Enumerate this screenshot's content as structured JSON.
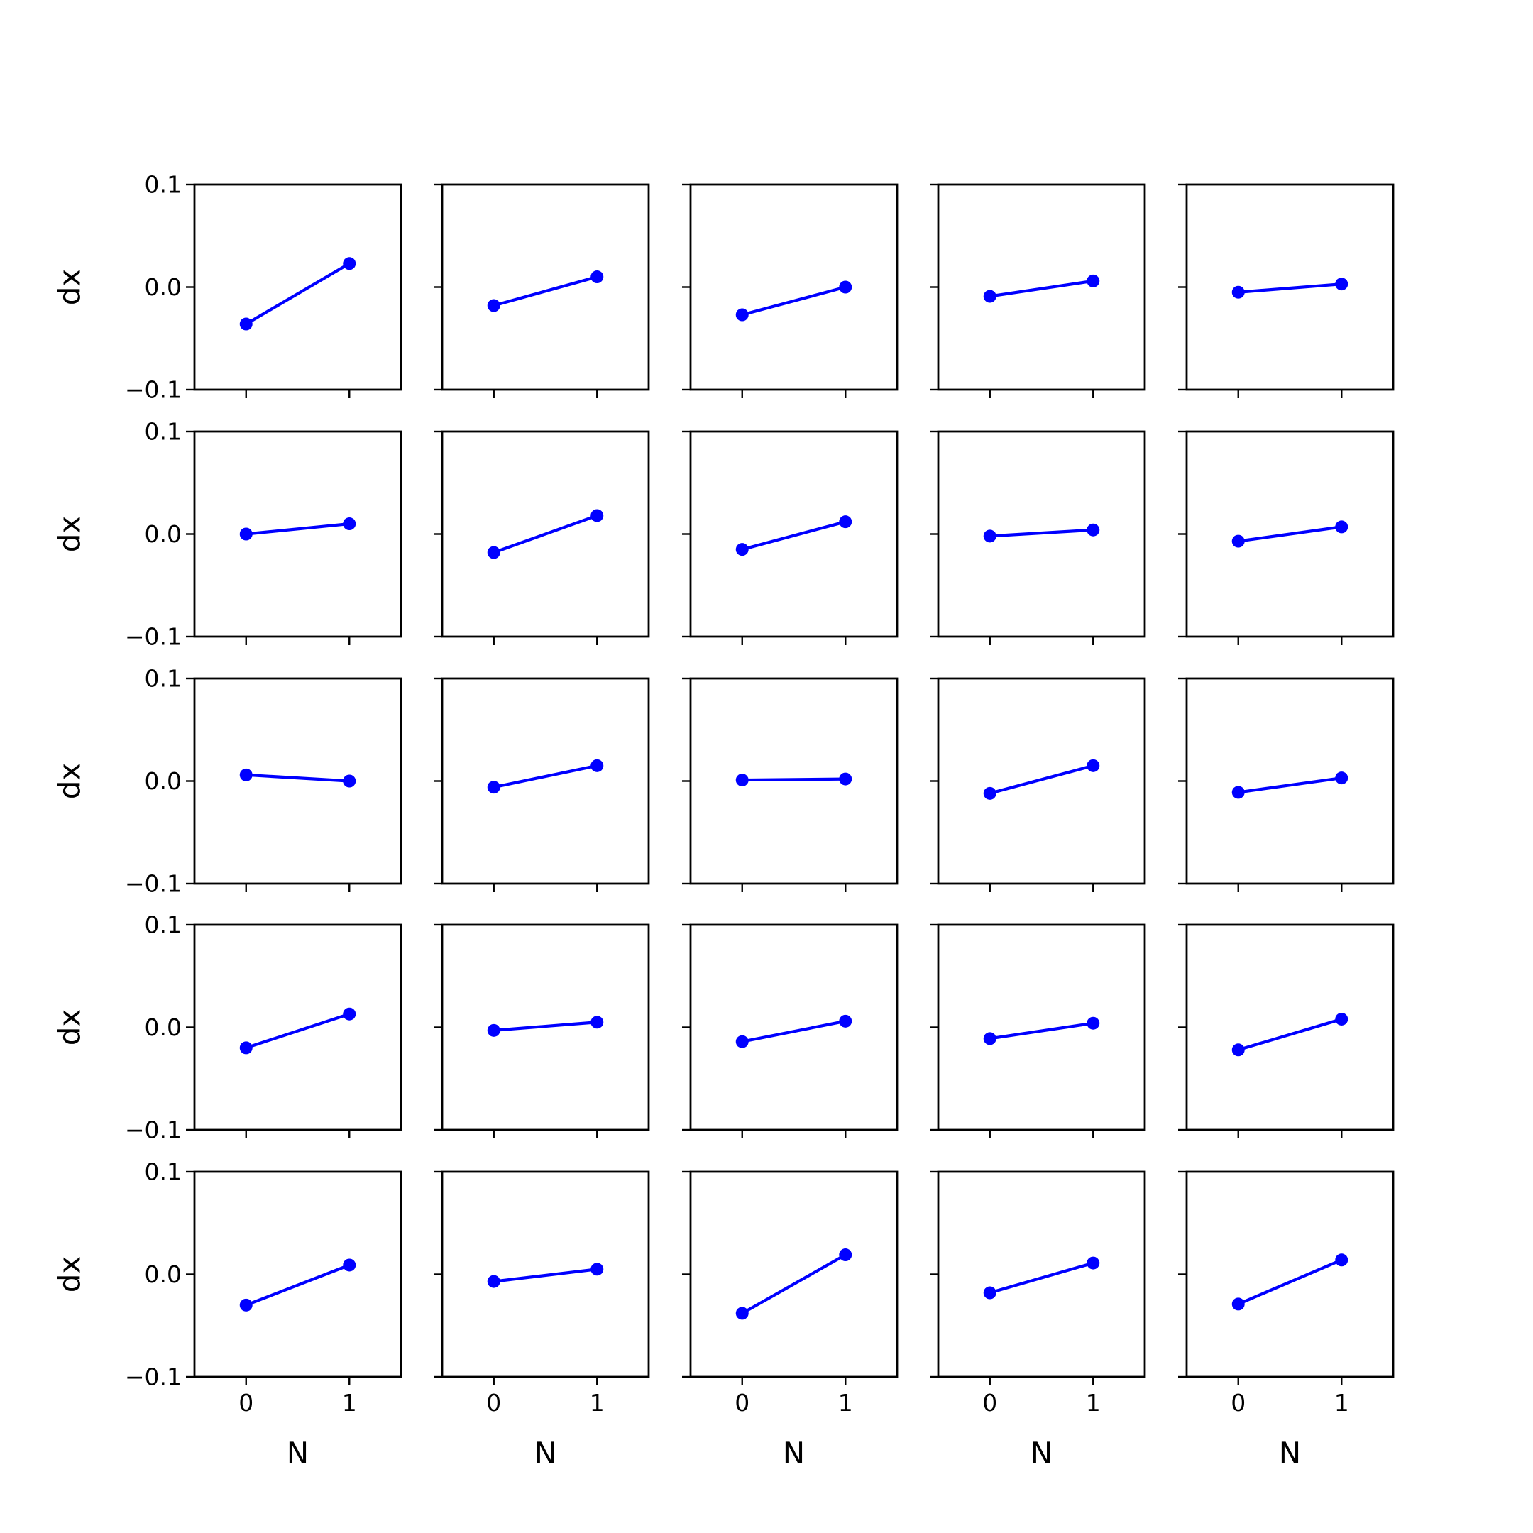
{
  "chart_data": {
    "type": "line",
    "layout": "5x5 grid of subplots",
    "grid": false,
    "color": "#0000ff",
    "marker": "circle",
    "xlabel": "N",
    "ylabel": "dx",
    "x": [
      0,
      1
    ],
    "xticks": [
      "0",
      "1"
    ],
    "xlim": [
      -0.5,
      1.5
    ],
    "yticks": [
      "0.1",
      "0.0",
      "−0.1"
    ],
    "ytick_values": [
      0.1,
      0.0,
      -0.1
    ],
    "ylim": [
      -0.1,
      0.1
    ],
    "panels": [
      {
        "row": 1,
        "col": 1,
        "y": [
          -0.036,
          0.023
        ]
      },
      {
        "row": 1,
        "col": 2,
        "y": [
          -0.018,
          0.01
        ]
      },
      {
        "row": 1,
        "col": 3,
        "y": [
          -0.027,
          0.0
        ]
      },
      {
        "row": 1,
        "col": 4,
        "y": [
          -0.009,
          0.006
        ]
      },
      {
        "row": 1,
        "col": 5,
        "y": [
          -0.005,
          0.003
        ]
      },
      {
        "row": 2,
        "col": 1,
        "y": [
          0.0,
          0.01
        ]
      },
      {
        "row": 2,
        "col": 2,
        "y": [
          -0.018,
          0.018
        ]
      },
      {
        "row": 2,
        "col": 3,
        "y": [
          -0.015,
          0.012
        ]
      },
      {
        "row": 2,
        "col": 4,
        "y": [
          -0.002,
          0.004
        ]
      },
      {
        "row": 2,
        "col": 5,
        "y": [
          -0.007,
          0.007
        ]
      },
      {
        "row": 3,
        "col": 1,
        "y": [
          0.006,
          0.0
        ]
      },
      {
        "row": 3,
        "col": 2,
        "y": [
          -0.006,
          0.015
        ]
      },
      {
        "row": 3,
        "col": 3,
        "y": [
          0.001,
          0.002
        ]
      },
      {
        "row": 3,
        "col": 4,
        "y": [
          -0.012,
          0.015
        ]
      },
      {
        "row": 3,
        "col": 5,
        "y": [
          -0.011,
          0.003
        ]
      },
      {
        "row": 4,
        "col": 1,
        "y": [
          -0.02,
          0.013
        ]
      },
      {
        "row": 4,
        "col": 2,
        "y": [
          -0.003,
          0.005
        ]
      },
      {
        "row": 4,
        "col": 3,
        "y": [
          -0.014,
          0.006
        ]
      },
      {
        "row": 4,
        "col": 4,
        "y": [
          -0.011,
          0.004
        ]
      },
      {
        "row": 4,
        "col": 5,
        "y": [
          -0.022,
          0.008
        ]
      },
      {
        "row": 5,
        "col": 1,
        "y": [
          -0.03,
          0.009
        ]
      },
      {
        "row": 5,
        "col": 2,
        "y": [
          -0.007,
          0.005
        ]
      },
      {
        "row": 5,
        "col": 3,
        "y": [
          -0.038,
          0.019
        ]
      },
      {
        "row": 5,
        "col": 4,
        "y": [
          -0.018,
          0.011
        ]
      },
      {
        "row": 5,
        "col": 5,
        "y": [
          -0.029,
          0.014
        ]
      }
    ]
  }
}
